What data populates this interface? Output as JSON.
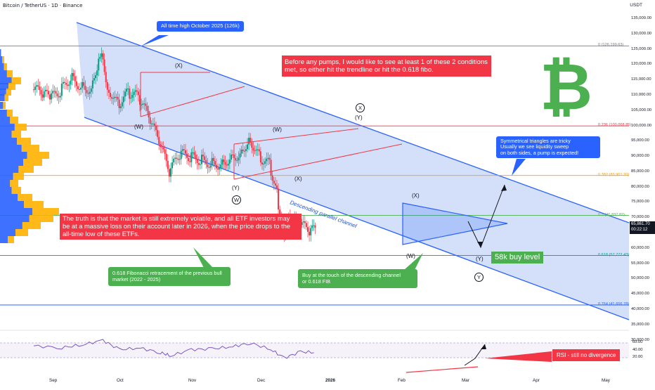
{
  "header": {
    "symbol_line": "Bitcoin / TetherUS · 1D · Binance",
    "currency": "USDT"
  },
  "price_axis": {
    "ticks": [
      "135,000.00",
      "130,000.00",
      "125,000.00",
      "120,000.00",
      "115,000.00",
      "110,000.00",
      "105,000.00",
      "100,000.00",
      "95,000.00",
      "90,000.00",
      "85,000.00",
      "80,000.00",
      "75,000.00",
      "70,000.00",
      "65,000.00",
      "60,000.00",
      "55,000.00",
      "50,000.00",
      "45,000.00",
      "40,000.00",
      "35,000.00",
      "30,000.00"
    ],
    "current_price": "65,861.70",
    "countdown": "00:22:12"
  },
  "rsi_axis": {
    "ticks": [
      "60.00",
      "40.00",
      "20.00"
    ]
  },
  "time_axis": {
    "months": [
      "Sep",
      "Oct",
      "Nov",
      "Dec",
      "2026",
      "Feb",
      "Mar",
      "Apr",
      "May"
    ]
  },
  "fib_levels": [
    {
      "label": "0 (126,199.63)",
      "value": 126199.63,
      "color": "#787b86"
    },
    {
      "label": "0.236 (100,068.85)",
      "value": 100068.85,
      "color": "#f23645"
    },
    {
      "label": "0.382 (83,901.20)",
      "value": 83901.2,
      "color": "#ff9800"
    },
    {
      "label": "0.5 (70,837.82)",
      "value": 70837.82,
      "color": "#4caf50"
    },
    {
      "label": "0.618 (57,772.43)",
      "value": 57772.43,
      "color": "#089981"
    },
    {
      "label": "0.764 (41,606.78)",
      "value": 41606.78,
      "color": "#2962ff"
    }
  ],
  "annotations": {
    "ath": "All time high October 2025 (126k)",
    "conditions": "Before any pumps, I would like to see at least 1 of these 2 conditions met, so either hit the trendline or hit the 0.618 fibo.",
    "triangles": "Symmetrical triangles are tricky\nUsually we see liquidity sweep\non both sides, a pump is expected!",
    "truth": "The truth is that the market is still extremely volatile, and all ETF investors may be at a massive loss on their account later in 2026, when the price drops to the all-time low of these ETFs.",
    "fib_note": "0.618 Fibonacci retracement of the previous bull market (2022 - 2025)",
    "buy_note": "Buy at the touch of the descending channel\nor 0.618 FIB",
    "buy_level": "58k buy level",
    "channel": "Descending parallel channel",
    "rsi_note": "RSI - still no divergence"
  },
  "waves": {
    "x1": "(X)",
    "w1": "(W)",
    "w2": "(W)",
    "y1": "(Y)",
    "x2": "(X)",
    "y_top": "(Y)",
    "x_top": "X",
    "x3": "(X)",
    "w3": "(W)",
    "y3": "(Y)",
    "circ_w": "W",
    "circ_y": "Y"
  },
  "colors": {
    "up": "#089981",
    "down": "#f23645",
    "channel": "#2962ff",
    "channel_fill": "#c5d5f7",
    "rsi": "#7e57c2",
    "btc": "#4caf50",
    "triangle": "#f23645"
  },
  "chart_data": {
    "type": "candlestick",
    "title": "Bitcoin / TetherUS · 1D · Binance",
    "ylabel": "USDT",
    "ylim": [
      30000,
      137000
    ],
    "close_series": [
      [
        "2025-08-20",
        112000
      ],
      [
        "2025-08-27",
        111000
      ],
      [
        "2025-09-01",
        109000
      ],
      [
        "2025-09-08",
        111500
      ],
      [
        "2025-09-15",
        116000
      ],
      [
        "2025-09-22",
        113000
      ],
      [
        "2025-09-29",
        112000
      ],
      [
        "2025-10-03",
        120000
      ],
      [
        "2025-10-06",
        125500
      ],
      [
        "2025-10-10",
        113000
      ],
      [
        "2025-10-17",
        107000
      ],
      [
        "2025-10-24",
        111000
      ],
      [
        "2025-10-31",
        109500
      ],
      [
        "2025-11-07",
        103000
      ],
      [
        "2025-11-14",
        95000
      ],
      [
        "2025-11-21",
        85000
      ],
      [
        "2025-11-28",
        91000
      ],
      [
        "2025-12-05",
        90000
      ],
      [
        "2025-12-12",
        89000
      ],
      [
        "2025-12-19",
        88000
      ],
      [
        "2025-12-26",
        87500
      ],
      [
        "2026-01-02",
        90000
      ],
      [
        "2026-01-09",
        91000
      ],
      [
        "2026-01-14",
        96500
      ],
      [
        "2026-01-21",
        90000
      ],
      [
        "2026-01-28",
        87500
      ],
      [
        "2026-02-02",
        78000
      ],
      [
        "2026-02-06",
        64000
      ],
      [
        "2026-02-10",
        69000
      ],
      [
        "2026-02-17",
        68000
      ],
      [
        "2026-02-24",
        66000
      ],
      [
        "2026-02-28",
        65861.7
      ]
    ],
    "rsi_series": [
      [
        "2025-08-20",
        52
      ],
      [
        "2025-09-08",
        47
      ],
      [
        "2025-09-22",
        55
      ],
      [
        "2025-10-06",
        67
      ],
      [
        "2025-10-17",
        42
      ],
      [
        "2025-10-31",
        46
      ],
      [
        "2025-11-14",
        34
      ],
      [
        "2025-11-21",
        25
      ],
      [
        "2025-12-05",
        42
      ],
      [
        "2025-12-19",
        44
      ],
      [
        "2026-01-02",
        50
      ],
      [
        "2026-01-14",
        60
      ],
      [
        "2026-01-28",
        42
      ],
      [
        "2026-02-06",
        19
      ],
      [
        "2026-02-17",
        36
      ],
      [
        "2026-02-28",
        34
      ]
    ]
  }
}
